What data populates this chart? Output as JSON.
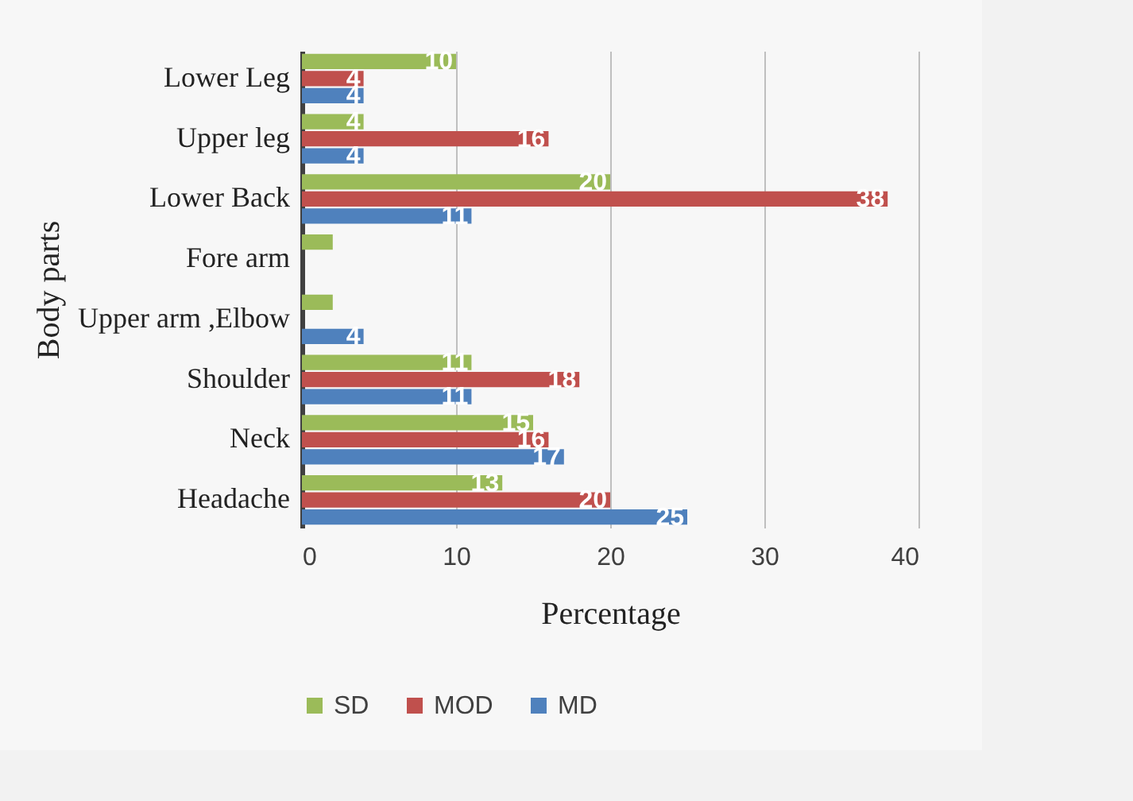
{
  "chart_data": {
    "type": "bar",
    "orientation": "horizontal",
    "xlabel": "Percentage",
    "ylabel": "Body parts",
    "categories": [
      "Lower Leg",
      "Upper leg",
      "Lower Back",
      "Fore arm",
      "Upper arm ,Elbow",
      "Shoulder",
      "Neck",
      "Headache"
    ],
    "series": [
      {
        "name": "SD",
        "color": "#9bbb59",
        "values": [
          10,
          4,
          20,
          2,
          2,
          11,
          15,
          13
        ],
        "value_labels": [
          "10",
          "4",
          "20",
          null,
          null,
          "11",
          "15",
          "13"
        ]
      },
      {
        "name": "MOD",
        "color": "#c0504d",
        "values": [
          4,
          16,
          38,
          null,
          null,
          18,
          16,
          20
        ],
        "value_labels": [
          "4",
          "16",
          "38",
          null,
          null,
          "18",
          "16",
          "20"
        ]
      },
      {
        "name": "MD",
        "color": "#4f81bd",
        "values": [
          4,
          4,
          11,
          null,
          4,
          11,
          17,
          25
        ],
        "value_labels": [
          "4",
          "4",
          "11",
          null,
          "4",
          "11",
          "17",
          "25"
        ]
      }
    ],
    "xlim": [
      0,
      40
    ],
    "xticks": [
      0,
      10,
      20,
      30,
      40
    ],
    "grid": "x",
    "legend": "bottom"
  }
}
